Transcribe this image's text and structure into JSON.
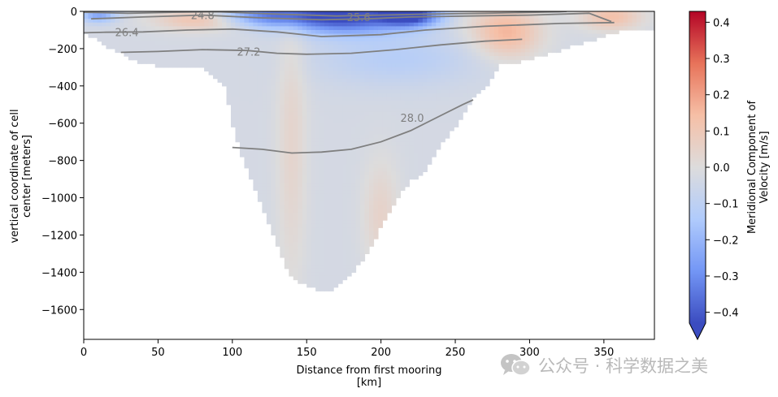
{
  "chart_data": {
    "type": "heatmap",
    "title": "",
    "xlabel": "Distance from first mooring\n[km]",
    "ylabel": "vertical coordinate of cell\ncenter [meters]",
    "xlim": [
      0,
      384
    ],
    "ylim": [
      -1760,
      0
    ],
    "xticks": [
      0,
      50,
      100,
      150,
      200,
      250,
      300,
      350
    ],
    "yticks": [
      0,
      -200,
      -400,
      -600,
      -800,
      -1000,
      -1200,
      -1400,
      -1600
    ],
    "colorbar": {
      "label": "Meridional Component of\nVelocity [m/s]",
      "min": -0.43,
      "max": 0.43,
      "ticks": [
        -0.4,
        -0.3,
        -0.2,
        -0.1,
        0.0,
        0.1,
        0.2,
        0.3,
        0.4
      ],
      "tick_labels": [
        "−0.4",
        "−0.3",
        "−0.2",
        "−0.1",
        "0.0",
        "0.1",
        "0.2",
        "0.3",
        "0.4"
      ],
      "extend": "min",
      "colormap": "coolwarm",
      "colormap_stops": [
        "#3b4cc0",
        "#7396f5",
        "#b0cbfc",
        "#dddcdc",
        "#f6bfa6",
        "#e7735a",
        "#b40426"
      ]
    },
    "bathymetry_depth": [
      {
        "x": 0,
        "depth": 100
      },
      {
        "x": 20,
        "depth": 200
      },
      {
        "x": 40,
        "depth": 270
      },
      {
        "x": 60,
        "depth": 300
      },
      {
        "x": 80,
        "depth": 300
      },
      {
        "x": 95,
        "depth": 400
      },
      {
        "x": 100,
        "depth": 600
      },
      {
        "x": 110,
        "depth": 850
      },
      {
        "x": 120,
        "depth": 1050
      },
      {
        "x": 130,
        "depth": 1250
      },
      {
        "x": 140,
        "depth": 1420
      },
      {
        "x": 150,
        "depth": 1460
      },
      {
        "x": 160,
        "depth": 1500
      },
      {
        "x": 170,
        "depth": 1470
      },
      {
        "x": 180,
        "depth": 1400
      },
      {
        "x": 190,
        "depth": 1300
      },
      {
        "x": 200,
        "depth": 1150
      },
      {
        "x": 210,
        "depth": 1000
      },
      {
        "x": 220,
        "depth": 900
      },
      {
        "x": 230,
        "depth": 850
      },
      {
        "x": 240,
        "depth": 700
      },
      {
        "x": 250,
        "depth": 620
      },
      {
        "x": 260,
        "depth": 480
      },
      {
        "x": 270,
        "depth": 400
      },
      {
        "x": 280,
        "depth": 280
      },
      {
        "x": 300,
        "depth": 250
      },
      {
        "x": 320,
        "depth": 200
      },
      {
        "x": 340,
        "depth": 150
      },
      {
        "x": 360,
        "depth": 100
      },
      {
        "x": 384,
        "depth": 100
      }
    ],
    "velocity_features": [
      {
        "x": 220,
        "y": -20,
        "value": -0.43,
        "rx": 20,
        "ry": 60
      },
      {
        "x": 175,
        "y": -30,
        "value": -0.42,
        "rx": 40,
        "ry": 90
      },
      {
        "x": 120,
        "y": -20,
        "value": -0.3,
        "rx": 35,
        "ry": 60
      },
      {
        "x": 270,
        "y": -40,
        "value": 0.0,
        "rx": 30,
        "ry": 120
      },
      {
        "x": 210,
        "y": -250,
        "value": -0.12,
        "rx": 55,
        "ry": 150
      },
      {
        "x": 80,
        "y": -40,
        "value": 0.15,
        "rx": 30,
        "ry": 60
      },
      {
        "x": 285,
        "y": -120,
        "value": 0.15,
        "rx": 22,
        "ry": 130
      },
      {
        "x": 355,
        "y": -30,
        "value": 0.13,
        "rx": 20,
        "ry": 70
      },
      {
        "x": 10,
        "y": -20,
        "value": -0.25,
        "rx": 12,
        "ry": 40
      },
      {
        "x": 140,
        "y": -700,
        "value": 0.04,
        "rx": 10,
        "ry": 800
      },
      {
        "x": 200,
        "y": -1100,
        "value": 0.05,
        "rx": 12,
        "ry": 300
      }
    ],
    "contours": [
      {
        "level": "24.8",
        "points": [
          [
            0,
            -5
          ],
          [
            30,
            -10
          ],
          [
            60,
            -5
          ],
          [
            90,
            -2
          ],
          [
            130,
            -15
          ],
          [
            170,
            -25
          ],
          [
            200,
            -20
          ],
          [
            230,
            -15
          ],
          [
            270,
            -10
          ],
          [
            320,
            -2
          ],
          [
            325,
            0
          ]
        ]
      },
      {
        "level": "25.6",
        "points": [
          [
            5,
            -40
          ],
          [
            40,
            -30
          ],
          [
            80,
            -20
          ],
          [
            120,
            -35
          ],
          [
            160,
            -45
          ],
          [
            190,
            -40
          ],
          [
            220,
            -30
          ],
          [
            260,
            -25
          ],
          [
            300,
            -20
          ],
          [
            340,
            -10
          ],
          [
            355,
            -55
          ]
        ]
      },
      {
        "level": "26.4",
        "points": [
          [
            0,
            -115
          ],
          [
            15,
            -112
          ],
          [
            40,
            -110
          ],
          [
            70,
            -100
          ],
          [
            100,
            -95
          ],
          [
            130,
            -110
          ],
          [
            160,
            -135
          ],
          [
            200,
            -125
          ],
          [
            230,
            -100
          ],
          [
            270,
            -80
          ],
          [
            320,
            -65
          ],
          [
            357,
            -60
          ]
        ]
      },
      {
        "level": "27.2",
        "points": [
          [
            25,
            -220
          ],
          [
            50,
            -215
          ],
          [
            80,
            -205
          ],
          [
            110,
            -210
          ],
          [
            130,
            -225
          ],
          [
            150,
            -230
          ],
          [
            180,
            -225
          ],
          [
            210,
            -205
          ],
          [
            240,
            -180
          ],
          [
            270,
            -160
          ],
          [
            295,
            -150
          ]
        ]
      },
      {
        "level": "28.0",
        "points": [
          [
            100,
            -730
          ],
          [
            120,
            -740
          ],
          [
            140,
            -760
          ],
          [
            160,
            -755
          ],
          [
            180,
            -740
          ],
          [
            200,
            -700
          ],
          [
            220,
            -640
          ],
          [
            240,
            -560
          ],
          [
            255,
            -500
          ],
          [
            262,
            -475
          ]
        ]
      }
    ],
    "contour_labels": [
      {
        "text": "24.8",
        "x": 80,
        "y": -20
      },
      {
        "text": "25.6",
        "x": 185,
        "y": -30
      },
      {
        "text": "26.4",
        "x": 29,
        "y": -112
      },
      {
        "text": "27.2",
        "x": 111,
        "y": -215
      },
      {
        "text": "28.0",
        "x": 221,
        "y": -570
      }
    ]
  },
  "watermark": {
    "text": "公众号 · 科学数据之美",
    "icon": "wechat-icon"
  }
}
